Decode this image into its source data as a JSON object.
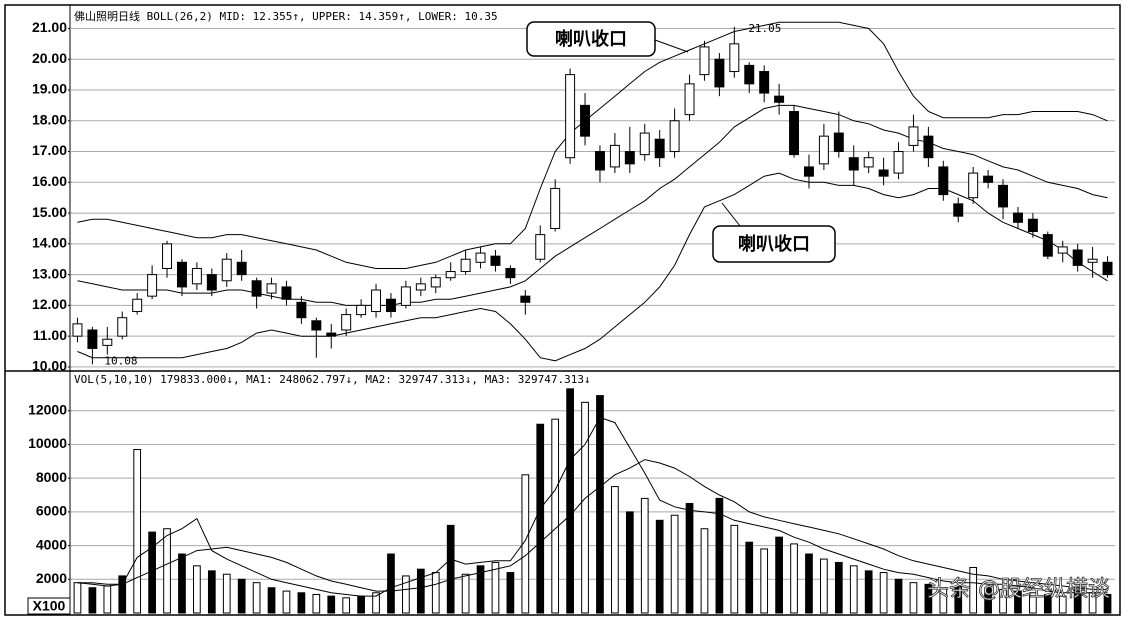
{
  "chart_data": [
    {
      "type": "candlestick",
      "header": "佛山照明日线 BOLL(26,2) MID: 12.355↑, UPPER: 14.359↑, LOWER: 10.35",
      "open": [
        11.0,
        11.2,
        10.7,
        11.0,
        11.8,
        12.3,
        13.2,
        13.4,
        12.7,
        13.0,
        12.8,
        13.4,
        12.8,
        12.4,
        12.6,
        12.1,
        11.5,
        11.1,
        11.2,
        11.7,
        11.8,
        12.2,
        12.0,
        12.5,
        12.6,
        12.9,
        13.1,
        13.4,
        13.6,
        13.2,
        12.3,
        13.5,
        14.5,
        16.8,
        18.5,
        17.0,
        16.5,
        17.0,
        16.9,
        17.4,
        17.0,
        18.2,
        19.5,
        20.0,
        19.6,
        19.8,
        19.6,
        18.8,
        18.3,
        16.5,
        16.6,
        17.6,
        16.8,
        16.5,
        16.4,
        16.3,
        17.2,
        17.5,
        16.5,
        15.3,
        15.5,
        16.2,
        15.9,
        15.0,
        14.8,
        14.3,
        13.7,
        13.8,
        13.4,
        13.4
      ],
      "high": [
        11.6,
        11.3,
        11.3,
        11.8,
        12.4,
        13.3,
        14.1,
        13.5,
        13.4,
        13.2,
        13.7,
        13.8,
        12.9,
        12.9,
        12.8,
        12.3,
        11.6,
        11.4,
        11.9,
        12.2,
        12.7,
        12.4,
        12.8,
        12.9,
        13.0,
        13.4,
        13.8,
        13.9,
        13.8,
        13.3,
        12.5,
        14.6,
        16.1,
        19.7,
        18.9,
        17.2,
        17.6,
        17.8,
        17.9,
        17.7,
        18.4,
        19.5,
        20.6,
        20.2,
        21.05,
        19.9,
        19.8,
        19.2,
        18.5,
        16.9,
        17.9,
        18.3,
        17.2,
        17.0,
        16.8,
        17.3,
        18.2,
        17.8,
        16.7,
        15.5,
        16.5,
        16.4,
        16.1,
        15.2,
        15.0,
        14.4,
        14.1,
        14.0,
        13.9,
        13.6
      ],
      "low": [
        10.8,
        10.08,
        10.4,
        10.9,
        11.7,
        12.2,
        12.9,
        12.3,
        12.5,
        12.3,
        12.6,
        12.8,
        11.9,
        12.2,
        12.0,
        11.4,
        10.3,
        10.6,
        11.0,
        11.6,
        11.6,
        11.6,
        11.9,
        12.3,
        12.4,
        12.8,
        13.0,
        13.2,
        13.1,
        12.7,
        11.7,
        13.4,
        14.4,
        16.6,
        17.2,
        16.0,
        16.3,
        16.3,
        16.7,
        16.5,
        16.8,
        18.0,
        19.3,
        18.8,
        19.4,
        18.9,
        18.6,
        18.2,
        16.8,
        15.8,
        16.4,
        16.8,
        15.9,
        16.3,
        15.9,
        16.1,
        17.0,
        16.5,
        15.4,
        14.7,
        15.3,
        15.8,
        14.8,
        14.5,
        14.2,
        13.5,
        13.4,
        13.1,
        12.9,
        12.9
      ],
      "close": [
        11.4,
        10.6,
        10.9,
        11.6,
        12.2,
        13.0,
        14.0,
        12.6,
        13.2,
        12.5,
        13.5,
        13.0,
        12.3,
        12.7,
        12.2,
        11.6,
        11.2,
        11.0,
        11.7,
        12.0,
        12.5,
        11.8,
        12.6,
        12.7,
        12.9,
        13.1,
        13.5,
        13.7,
        13.3,
        12.9,
        12.1,
        14.3,
        15.8,
        19.5,
        17.5,
        16.4,
        17.2,
        16.6,
        17.6,
        16.8,
        18.0,
        19.2,
        20.4,
        19.1,
        20.5,
        19.2,
        18.9,
        18.6,
        16.9,
        16.2,
        17.5,
        17.0,
        16.4,
        16.8,
        16.2,
        17.0,
        17.8,
        16.8,
        15.6,
        14.9,
        16.3,
        16.0,
        15.2,
        14.7,
        14.4,
        13.6,
        13.9,
        13.3,
        13.5,
        13.0
      ],
      "bands": {
        "upper": [
          14.7,
          14.8,
          14.8,
          14.7,
          14.6,
          14.5,
          14.4,
          14.3,
          14.2,
          14.2,
          14.3,
          14.3,
          14.2,
          14.1,
          14.0,
          13.9,
          13.8,
          13.6,
          13.4,
          13.3,
          13.2,
          13.2,
          13.2,
          13.3,
          13.4,
          13.6,
          13.8,
          13.9,
          14.0,
          14.0,
          14.5,
          15.8,
          17.0,
          17.6,
          18.0,
          18.4,
          18.8,
          19.2,
          19.6,
          19.9,
          20.1,
          20.3,
          20.5,
          20.7,
          20.9,
          21.0,
          21.1,
          21.2,
          21.2,
          21.2,
          21.2,
          21.2,
          21.1,
          21.0,
          20.5,
          19.6,
          18.8,
          18.3,
          18.1,
          18.1,
          18.1,
          18.1,
          18.2,
          18.2,
          18.3,
          18.3,
          18.3,
          18.3,
          18.2,
          18.0
        ],
        "mid": [
          12.8,
          12.7,
          12.6,
          12.5,
          12.5,
          12.5,
          12.5,
          12.4,
          12.4,
          12.4,
          12.5,
          12.5,
          12.4,
          12.3,
          12.2,
          12.2,
          12.1,
          12.1,
          12.0,
          12.0,
          12.0,
          12.0,
          12.1,
          12.1,
          12.2,
          12.2,
          12.3,
          12.4,
          12.5,
          12.6,
          12.8,
          13.2,
          13.6,
          13.9,
          14.2,
          14.5,
          14.8,
          15.1,
          15.4,
          15.8,
          16.1,
          16.5,
          16.9,
          17.3,
          17.8,
          18.1,
          18.4,
          18.5,
          18.5,
          18.4,
          18.3,
          18.2,
          18.0,
          17.9,
          17.7,
          17.6,
          17.4,
          17.3,
          17.1,
          17.0,
          16.9,
          16.7,
          16.5,
          16.4,
          16.2,
          16.0,
          15.9,
          15.8,
          15.6,
          15.5
        ],
        "lower": [
          10.5,
          10.3,
          10.3,
          10.3,
          10.3,
          10.3,
          10.3,
          10.3,
          10.4,
          10.5,
          10.6,
          10.8,
          11.1,
          11.2,
          11.1,
          11.0,
          11.0,
          11.0,
          11.1,
          11.2,
          11.3,
          11.4,
          11.5,
          11.6,
          11.6,
          11.7,
          11.8,
          11.9,
          11.8,
          11.4,
          10.9,
          10.3,
          10.2,
          10.4,
          10.6,
          10.9,
          11.3,
          11.7,
          12.1,
          12.6,
          13.3,
          14.3,
          15.2,
          15.4,
          15.6,
          15.9,
          16.2,
          16.3,
          16.1,
          16.0,
          16.0,
          15.9,
          15.9,
          15.8,
          15.6,
          15.5,
          15.6,
          15.8,
          15.8,
          15.6,
          15.4,
          15.0,
          14.7,
          14.5,
          14.3,
          14.1,
          13.8,
          13.4,
          13.1,
          12.8
        ]
      },
      "color": "#000000",
      "ylim": [
        9.9,
        21.6
      ],
      "yticks": [
        {
          "value": 10,
          "label": "10.00"
        },
        {
          "value": 11,
          "label": "11.00"
        },
        {
          "value": 12,
          "label": "12.00"
        },
        {
          "value": 13,
          "label": "13.00"
        },
        {
          "value": 14,
          "label": "14.00"
        },
        {
          "value": 15,
          "label": "15.00"
        },
        {
          "value": 16,
          "label": "16.00"
        },
        {
          "value": 17,
          "label": "17.00"
        },
        {
          "value": 18,
          "label": "18.00"
        },
        {
          "value": 19,
          "label": "19.00"
        },
        {
          "value": 20,
          "label": "20.00"
        },
        {
          "value": 21,
          "label": "21.00"
        }
      ],
      "grid": true,
      "high_label": "21.05",
      "low_label": "10.08",
      "annotations": [
        "喇叭收口",
        "喇叭收口"
      ]
    },
    {
      "type": "bar",
      "header": "VOL(5,10,10) 179833.000↓, MA1: 248062.797↓, MA2: 329747.313↓, MA3: 329747.313↓",
      "values": [
        1800,
        1500,
        1600,
        2200,
        9700,
        4800,
        5000,
        3500,
        2800,
        2500,
        2300,
        2000,
        1800,
        1500,
        1300,
        1200,
        1100,
        1000,
        900,
        1000,
        1200,
        3500,
        2200,
        2600,
        2400,
        5200,
        2300,
        2800,
        3000,
        2400,
        8200,
        11200,
        11500,
        13300,
        12500,
        12900,
        7500,
        6000,
        6800,
        5500,
        5800,
        6500,
        5000,
        6800,
        5200,
        4200,
        3800,
        4500,
        4100,
        3500,
        3200,
        3000,
        2800,
        2500,
        2400,
        2000,
        1800,
        1700,
        1500,
        1600,
        2700,
        1500,
        1400,
        1300,
        1200,
        1100,
        1000,
        1400,
        1200,
        1100
      ],
      "lines": [
        [
          1800,
          1700,
          1600,
          1700,
          3300,
          3900,
          4600,
          5000,
          5600,
          3700,
          3200,
          2800,
          2400,
          2000,
          1800,
          1600,
          1400,
          1200,
          1100,
          1000,
          1000,
          1500,
          1800,
          2100,
          2400,
          3200,
          2900,
          3000,
          3100,
          3100,
          4300,
          6200,
          7300,
          9100,
          10000,
          11600,
          11300,
          9800,
          8300,
          6700,
          6300,
          6100,
          6000,
          5900,
          5500,
          5300,
          5100,
          4900,
          4500,
          4200,
          3800,
          3500,
          3200,
          2900,
          2600,
          2400,
          2300,
          2100,
          1900,
          1800,
          1800,
          1700,
          1700,
          1600,
          1500,
          1300,
          1200,
          1200,
          1200,
          1200
        ],
        [
          1800,
          1800,
          1700,
          1700,
          2100,
          2500,
          2900,
          3300,
          3700,
          3800,
          3900,
          3700,
          3500,
          3300,
          3000,
          2600,
          2200,
          1900,
          1700,
          1500,
          1300,
          1300,
          1400,
          1500,
          1700,
          2000,
          2200,
          2400,
          2600,
          2800,
          3400,
          4200,
          5000,
          5800,
          6800,
          7500,
          8200,
          8600,
          9100,
          8900,
          8600,
          8100,
          7500,
          7000,
          6600,
          6000,
          5700,
          5500,
          5300,
          5100,
          4900,
          4700,
          4400,
          4100,
          3800,
          3400,
          3100,
          2900,
          2700,
          2500,
          2300,
          2200,
          2000,
          1900,
          1800,
          1700,
          1600,
          1500,
          1400,
          1400
        ]
      ],
      "color": "#000000",
      "ylim": [
        0,
        14300
      ],
      "yticks": [
        2000,
        4000,
        6000,
        8000,
        10000,
        12000
      ],
      "grid": true,
      "unit_label": "X100"
    }
  ],
  "watermark": "头条 @股经纵横谈"
}
